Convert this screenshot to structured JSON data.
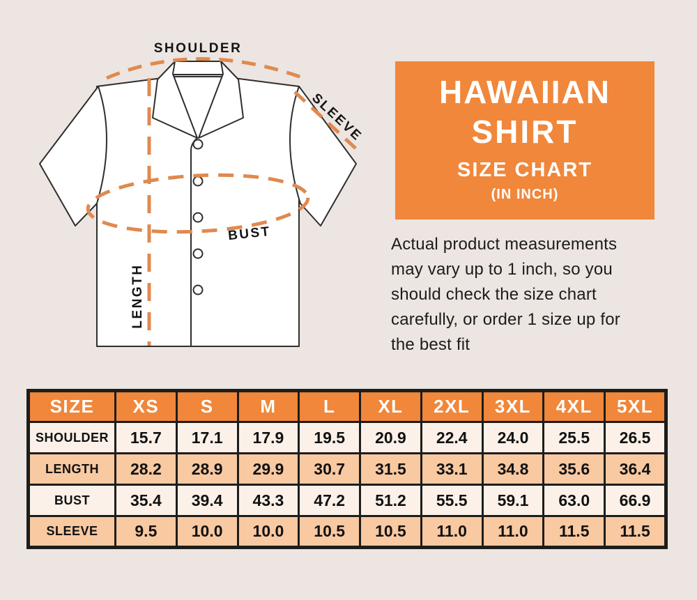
{
  "colors": {
    "background": "#ECE5E1",
    "accent_orange": "#F0873B",
    "dash_orange": "#E0894F",
    "row_peach": "#F9C9A2",
    "row_cream": "#FBF1E8",
    "border_black": "#1d1d1b"
  },
  "diagram": {
    "labels": {
      "shoulder": "SHOULDER",
      "sleeve": "SLEEVE",
      "bust": "BUST",
      "length": "LENGTH"
    }
  },
  "title_card": {
    "title_line1": "HAWAIIAN",
    "title_line2": "SHIRT",
    "subtitle": "SIZE CHART",
    "unit_note": "(IN INCH)"
  },
  "note": {
    "text": "Actual product measurements\nmay vary up to 1 inch, so you\nshould check the size chart\ncarefully, or order 1 size up for\nthe best fit"
  },
  "chart_data": {
    "type": "table",
    "title": "HAWAIIAN SHIRT SIZE CHART (IN INCH)",
    "columns": [
      "SIZE",
      "XS",
      "S",
      "M",
      "L",
      "XL",
      "2XL",
      "3XL",
      "4XL",
      "5XL"
    ],
    "rows": [
      {
        "label": "SHOULDER",
        "values": [
          "15.7",
          "17.1",
          "17.9",
          "19.5",
          "20.9",
          "22.4",
          "24.0",
          "25.5",
          "26.5"
        ]
      },
      {
        "label": "LENGTH",
        "values": [
          "28.2",
          "28.9",
          "29.9",
          "30.7",
          "31.5",
          "33.1",
          "34.8",
          "35.6",
          "36.4"
        ]
      },
      {
        "label": "BUST",
        "values": [
          "35.4",
          "39.4",
          "43.3",
          "47.2",
          "51.2",
          "55.5",
          "59.1",
          "63.0",
          "66.9"
        ]
      },
      {
        "label": "SLEEVE",
        "values": [
          "9.5",
          "10.0",
          "10.0",
          "10.5",
          "10.5",
          "11.0",
          "11.0",
          "11.5",
          "11.5"
        ]
      }
    ]
  }
}
